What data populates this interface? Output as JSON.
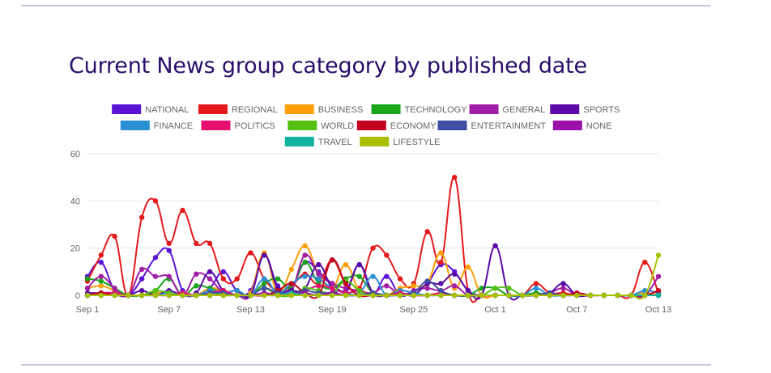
{
  "title": "Current News group category by published date",
  "chart_data": {
    "type": "line",
    "xlabel": "",
    "ylabel": "",
    "ylim": [
      0,
      60
    ],
    "yticks": [
      "0",
      "20",
      "40",
      "60"
    ],
    "xticks": [
      "Sep 1",
      "Sep 7",
      "Sep 13",
      "Sep 19",
      "Sep 25",
      "Oct 1",
      "Oct 7",
      "Oct 13"
    ],
    "grid": true,
    "legend_position": "top",
    "dates": [
      "Sep 1",
      "Sep 2",
      "Sep 3",
      "Sep 4",
      "Sep 5",
      "Sep 6",
      "Sep 7",
      "Sep 8",
      "Sep 9",
      "Sep 10",
      "Sep 11",
      "Sep 12",
      "Sep 13",
      "Sep 14",
      "Sep 15",
      "Sep 16",
      "Sep 17",
      "Sep 18",
      "Sep 19",
      "Sep 20",
      "Sep 21",
      "Sep 22",
      "Sep 23",
      "Sep 24",
      "Sep 25",
      "Sep 26",
      "Sep 27",
      "Sep 28",
      "Sep 29",
      "Sep 30",
      "Oct 1",
      "Oct 2",
      "Oct 3",
      "Oct 4",
      "Oct 5",
      "Oct 6",
      "Oct 7",
      "Oct 8",
      "Oct 9",
      "Oct 10",
      "Oct 11",
      "Oct 12",
      "Oct 13"
    ],
    "series": [
      {
        "name": "NATIONAL",
        "color": "#5b13d6",
        "values": [
          8,
          14,
          2,
          0,
          7,
          16,
          19,
          2,
          0,
          3,
          10,
          2,
          2,
          17,
          4,
          3,
          14,
          10,
          5,
          2,
          13,
          1,
          8,
          0,
          2,
          5,
          13,
          10,
          2,
          0,
          0,
          0,
          0,
          1,
          0,
          0,
          0,
          0,
          0,
          0,
          0,
          1,
          0
        ]
      },
      {
        "name": "REGIONAL",
        "color": "#e41a1c",
        "values": [
          6,
          17,
          25,
          0,
          33,
          40,
          22,
          36,
          22,
          22,
          7,
          7,
          18,
          7,
          2,
          4,
          9,
          5,
          15,
          5,
          3,
          20,
          17,
          7,
          5,
          27,
          14,
          50,
          2,
          0,
          0,
          0,
          0,
          5,
          1,
          1,
          0,
          0,
          0,
          0,
          0,
          14,
          1
        ]
      },
      {
        "name": "BUSINESS",
        "color": "#ff9f0a",
        "values": [
          3,
          4,
          2,
          0,
          0,
          1,
          1,
          0,
          0,
          3,
          2,
          0,
          1,
          18,
          1,
          11,
          21,
          9,
          3,
          13,
          2,
          1,
          0,
          3,
          4,
          5,
          18,
          3,
          12,
          0,
          0,
          0,
          0,
          0,
          0,
          0,
          0,
          0,
          0,
          0,
          0,
          1,
          0
        ]
      },
      {
        "name": "TECHNOLOGY",
        "color": "#1aa51a",
        "values": [
          7,
          6,
          3,
          0,
          0,
          2,
          7,
          0,
          4,
          3,
          1,
          0,
          0,
          5,
          7,
          3,
          14,
          5,
          3,
          7,
          8,
          1,
          0,
          2,
          1,
          0,
          1,
          0,
          0,
          3,
          3,
          0,
          0,
          1,
          0,
          0,
          0,
          0,
          0,
          0,
          0,
          0,
          0
        ]
      },
      {
        "name": "GENERAL",
        "color": "#a21ea6",
        "values": [
          3,
          8,
          3,
          0,
          11,
          8,
          8,
          0,
          9,
          7,
          1,
          0,
          0,
          17,
          3,
          2,
          17,
          9,
          5,
          3,
          2,
          1,
          4,
          0,
          2,
          3,
          2,
          4,
          0,
          0,
          0,
          0,
          0,
          0,
          1,
          3,
          0,
          0,
          0,
          0,
          0,
          0,
          8
        ]
      },
      {
        "name": "SPORTS",
        "color": "#5a0aa6",
        "values": [
          1,
          1,
          1,
          0,
          2,
          0,
          2,
          0,
          1,
          10,
          2,
          2,
          0,
          17,
          3,
          2,
          3,
          13,
          3,
          1,
          13,
          1,
          0,
          1,
          0,
          5,
          5,
          9,
          2,
          0,
          21,
          0,
          0,
          0,
          1,
          5,
          0,
          0,
          0,
          0,
          0,
          0,
          0
        ]
      },
      {
        "name": "FINANCE",
        "color": "#2b8fd6",
        "values": [
          0,
          1,
          1,
          0,
          0,
          0,
          1,
          0,
          0,
          2,
          1,
          2,
          0,
          7,
          1,
          5,
          8,
          7,
          3,
          1,
          1,
          8,
          0,
          2,
          1,
          0,
          0,
          0,
          0,
          0,
          0,
          0,
          0,
          3,
          0,
          0,
          0,
          0,
          0,
          0,
          0,
          2,
          1
        ]
      },
      {
        "name": "POLITICS",
        "color": "#e8106e",
        "values": [
          0,
          1,
          1,
          0,
          0,
          0,
          0,
          1,
          0,
          1,
          2,
          0,
          0,
          0,
          1,
          0,
          2,
          4,
          3,
          1,
          2,
          0,
          0,
          1,
          0,
          0,
          1,
          0,
          0,
          0,
          0,
          0,
          0,
          0,
          0,
          0,
          0,
          0,
          0,
          0,
          0,
          0,
          0
        ]
      },
      {
        "name": "WORLD",
        "color": "#55c012",
        "values": [
          0,
          1,
          0,
          0,
          0,
          2,
          1,
          0,
          0,
          1,
          0,
          0,
          0,
          3,
          0,
          0,
          3,
          2,
          1,
          6,
          2,
          0,
          0,
          0,
          0,
          0,
          0,
          0,
          0,
          0,
          3,
          3,
          0,
          0,
          0,
          0,
          0,
          0,
          0,
          0,
          0,
          0,
          0
        ]
      },
      {
        "name": "ECONOMY",
        "color": "#c4001f",
        "values": [
          0,
          1,
          0,
          0,
          0,
          0,
          0,
          0,
          0,
          0,
          0,
          0,
          0,
          0,
          2,
          5,
          1,
          0,
          15,
          5,
          0,
          0,
          0,
          0,
          0,
          0,
          0,
          0,
          0,
          0,
          0,
          0,
          0,
          0,
          1,
          0,
          1,
          0,
          0,
          0,
          0,
          0,
          2
        ]
      },
      {
        "name": "ENTERTAINMENT",
        "color": "#3f4da3",
        "values": [
          0,
          0,
          0,
          0,
          0,
          0,
          0,
          0,
          0,
          1,
          1,
          0,
          0,
          3,
          1,
          1,
          2,
          1,
          1,
          0,
          0,
          1,
          0,
          0,
          1,
          6,
          2,
          0,
          0,
          0,
          0,
          0,
          0,
          0,
          1,
          0,
          0,
          0,
          0,
          0,
          0,
          0,
          0
        ]
      },
      {
        "name": "NONE",
        "color": "#9a10a8",
        "values": [
          0,
          0,
          0,
          0,
          0,
          0,
          0,
          0,
          0,
          0,
          0,
          0,
          0,
          1,
          0,
          1,
          1,
          0,
          1,
          0,
          0,
          0,
          0,
          0,
          0,
          0,
          0,
          0,
          0,
          0,
          0,
          0,
          0,
          0,
          0,
          0,
          0,
          0,
          0,
          0,
          0,
          0,
          0
        ]
      },
      {
        "name": "TRAVEL",
        "color": "#0fb3a0",
        "values": [
          0,
          0,
          0,
          0,
          0,
          0,
          0,
          0,
          0,
          0,
          0,
          0,
          0,
          0,
          0,
          1,
          0,
          0,
          0,
          0,
          0,
          0,
          0,
          0,
          0,
          0,
          0,
          0,
          0,
          0,
          0,
          0,
          0,
          0,
          0,
          0,
          0,
          0,
          0,
          0,
          0,
          0,
          0
        ]
      },
      {
        "name": "LIFESTYLE",
        "color": "#a8c000",
        "values": [
          0,
          0,
          0,
          0,
          0,
          0,
          0,
          0,
          0,
          0,
          0,
          0,
          0,
          0,
          0,
          0,
          0,
          0,
          0,
          0,
          0,
          0,
          0,
          0,
          0,
          0,
          0,
          0,
          0,
          0,
          0,
          0,
          0,
          0,
          0,
          0,
          0,
          0,
          0,
          0,
          0,
          0,
          17
        ]
      }
    ]
  }
}
